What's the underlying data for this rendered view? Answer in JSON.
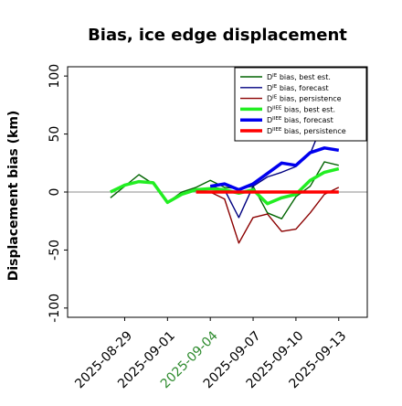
{
  "chart_data": {
    "type": "line",
    "title": "Bias, ice edge displacement",
    "xlabel": "",
    "ylabel": "Displacement bias (km)",
    "ylim": [
      -108,
      108
    ],
    "yticks": [
      -100,
      -50,
      0,
      50,
      100
    ],
    "xlim": [
      "2025-08-25",
      "2025-09-15"
    ],
    "xticks": [
      {
        "date": "2025-08-29",
        "label": "2025-08-29",
        "color": "#000000"
      },
      {
        "date": "2025-09-01",
        "label": "2025-09-01",
        "color": "#000000"
      },
      {
        "date": "2025-09-04",
        "label": "2025-09-04",
        "color": "#2e8b2e"
      },
      {
        "date": "2025-09-07",
        "label": "2025-09-07",
        "color": "#000000"
      },
      {
        "date": "2025-09-10",
        "label": "2025-09-10",
        "color": "#000000"
      },
      {
        "date": "2025-09-13",
        "label": "2025-09-13",
        "color": "#000000"
      }
    ],
    "grid": false,
    "legend_position": "top-right",
    "reference_line": 0,
    "series": [
      {
        "name": "D^IE bias, best est.",
        "color": "#006400",
        "width": 1.4,
        "points": [
          [
            "2025-08-28",
            -5
          ],
          [
            "2025-08-30",
            15
          ],
          [
            "2025-08-31",
            7
          ],
          [
            "2025-09-01",
            -9
          ],
          [
            "2025-09-02",
            0
          ],
          [
            "2025-09-03",
            4
          ],
          [
            "2025-09-04",
            10
          ],
          [
            "2025-09-05",
            4
          ],
          [
            "2025-09-06",
            3
          ],
          [
            "2025-09-07",
            5
          ],
          [
            "2025-09-08",
            -18
          ],
          [
            "2025-09-09",
            -23
          ],
          [
            "2025-09-10",
            -4
          ],
          [
            "2025-09-11",
            5
          ],
          [
            "2025-09-12",
            26
          ],
          [
            "2025-09-13",
            23
          ]
        ]
      },
      {
        "name": "D^IE bias, forecast",
        "color": "#000080",
        "width": 1.4,
        "points": [
          [
            "2025-09-04",
            5
          ],
          [
            "2025-09-05",
            2
          ],
          [
            "2025-09-06",
            -22
          ],
          [
            "2025-09-07",
            5
          ],
          [
            "2025-09-08",
            13
          ],
          [
            "2025-09-09",
            17
          ],
          [
            "2025-09-10",
            22
          ],
          [
            "2025-09-11",
            33
          ],
          [
            "2025-09-11.5",
            48
          ]
        ]
      },
      {
        "name": "D^IE bias, persistence",
        "color": "#8b0000",
        "width": 1.4,
        "points": [
          [
            "2025-09-04",
            0
          ],
          [
            "2025-09-05",
            -6
          ],
          [
            "2025-09-06",
            -44
          ],
          [
            "2025-09-07",
            -22
          ],
          [
            "2025-09-08",
            -19
          ],
          [
            "2025-09-09",
            -34
          ],
          [
            "2025-09-10",
            -32
          ],
          [
            "2025-09-11",
            -18
          ],
          [
            "2025-09-12",
            -2
          ],
          [
            "2025-09-13",
            4
          ]
        ]
      },
      {
        "name": "D^IIEE bias, best est.",
        "color": "#22ee22",
        "width": 3.5,
        "points": [
          [
            "2025-08-28",
            0
          ],
          [
            "2025-08-29",
            6
          ],
          [
            "2025-08-30",
            9
          ],
          [
            "2025-08-31",
            8
          ],
          [
            "2025-09-01",
            -9
          ],
          [
            "2025-09-02",
            -2
          ],
          [
            "2025-09-03",
            2
          ],
          [
            "2025-09-04",
            3
          ],
          [
            "2025-09-05",
            2
          ],
          [
            "2025-09-06",
            -1
          ],
          [
            "2025-09-07",
            2
          ],
          [
            "2025-09-08",
            -10
          ],
          [
            "2025-09-09",
            -5
          ],
          [
            "2025-09-10",
            -2
          ],
          [
            "2025-09-11",
            10
          ],
          [
            "2025-09-12",
            17
          ],
          [
            "2025-09-13",
            20
          ]
        ]
      },
      {
        "name": "D^IIEE bias, forecast",
        "color": "#0000ee",
        "width": 3.5,
        "points": [
          [
            "2025-09-04",
            5
          ],
          [
            "2025-09-05",
            7
          ],
          [
            "2025-09-06",
            2
          ],
          [
            "2025-09-07",
            7
          ],
          [
            "2025-09-08",
            16
          ],
          [
            "2025-09-09",
            25
          ],
          [
            "2025-09-10",
            23
          ],
          [
            "2025-09-11",
            34
          ],
          [
            "2025-09-12",
            38
          ],
          [
            "2025-09-13",
            36
          ]
        ]
      },
      {
        "name": "D^IIEE bias, persistence",
        "color": "#ff0000",
        "width": 3.5,
        "points": [
          [
            "2025-09-03",
            0
          ],
          [
            "2025-09-04",
            0
          ],
          [
            "2025-09-05",
            0
          ],
          [
            "2025-09-06",
            0
          ],
          [
            "2025-09-07",
            0
          ],
          [
            "2025-09-08",
            0
          ],
          [
            "2025-09-09",
            0
          ],
          [
            "2025-09-10",
            0
          ],
          [
            "2025-09-11",
            0
          ],
          [
            "2025-09-12",
            0
          ],
          [
            "2025-09-13",
            0
          ]
        ]
      }
    ],
    "legend": [
      {
        "base": "D",
        "sup": "IE",
        "text": " bias, best est.",
        "color": "#006400",
        "width": 1.4
      },
      {
        "base": "D",
        "sup": "IE",
        "text": " bias, forecast",
        "color": "#000080",
        "width": 1.4
      },
      {
        "base": "D",
        "sup": "IE",
        "text": " bias, persistence",
        "color": "#8b0000",
        "width": 1.4
      },
      {
        "base": "D",
        "sup": "IIEE",
        "text": " bias, best est.",
        "color": "#22ee22",
        "width": 3.5
      },
      {
        "base": "D",
        "sup": "IIEE",
        "text": " bias, forecast",
        "color": "#0000ee",
        "width": 3.5
      },
      {
        "base": "D",
        "sup": "IIEE",
        "text": " bias, persistence",
        "color": "#ff0000",
        "width": 3.5
      }
    ]
  }
}
